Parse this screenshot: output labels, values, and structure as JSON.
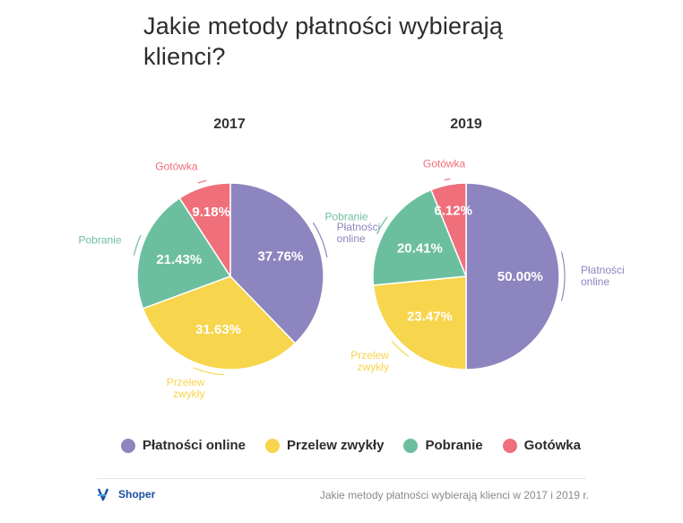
{
  "title": "Jakie metody płatności wybierają klienci?",
  "legend": [
    {
      "label": "Płatności online",
      "color": "#8d85bf"
    },
    {
      "label": "Przelew zwykły",
      "color": "#f7d54c"
    },
    {
      "label": "Pobranie",
      "color": "#6cbf9e"
    },
    {
      "label": "Gotówka",
      "color": "#ef6f7b"
    }
  ],
  "footer": {
    "logo_text": "Shoper",
    "caption": "Jakie metody płatności wybierają klienci w 2017 i 2019 r."
  },
  "chart_data": [
    {
      "type": "pie",
      "title": "2017",
      "series": [
        {
          "name": "Płatności online",
          "value": 37.76,
          "label": "37.76%",
          "outer_label": [
            "Płatności",
            "online"
          ],
          "color": "#8d85bf"
        },
        {
          "name": "Przelew zwykły",
          "value": 31.63,
          "label": "31.63%",
          "outer_label": [
            "Przelew",
            "zwykły"
          ],
          "color": "#f7d54c"
        },
        {
          "name": "Pobranie",
          "value": 21.43,
          "label": "21.43%",
          "outer_label": [
            "Pobranie"
          ],
          "color": "#6cbf9e"
        },
        {
          "name": "Gotówka",
          "value": 9.18,
          "label": "9.18%",
          "outer_label": [
            "Gotówka"
          ],
          "color": "#ef6f7b"
        }
      ]
    },
    {
      "type": "pie",
      "title": "2019",
      "series": [
        {
          "name": "Płatności online",
          "value": 50.0,
          "label": "50.00%",
          "outer_label": [
            "Płatności",
            "online"
          ],
          "color": "#8d85bf"
        },
        {
          "name": "Przelew zwykły",
          "value": 23.47,
          "label": "23.47%",
          "outer_label": [
            "Przelew",
            "zwykły"
          ],
          "color": "#f7d54c"
        },
        {
          "name": "Pobranie",
          "value": 20.41,
          "label": "20.41%",
          "outer_label": [
            "Pobranie"
          ],
          "color": "#6cbf9e"
        },
        {
          "name": "Gotówka",
          "value": 6.12,
          "label": "6.12%",
          "outer_label": [
            "Gotówka"
          ],
          "color": "#ef6f7b"
        }
      ]
    }
  ]
}
